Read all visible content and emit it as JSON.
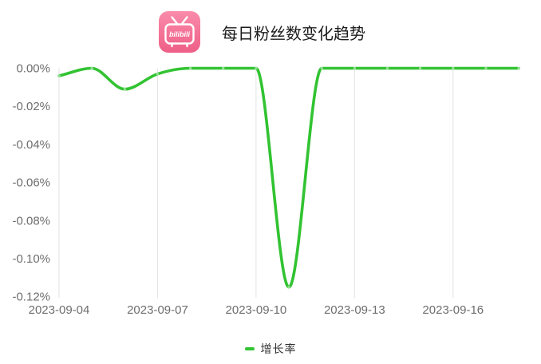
{
  "header": {
    "logo": {
      "name": "bilibili",
      "text": "bilibili",
      "brand_color": "#fb7299"
    },
    "title": "每日粉丝数变化趋势"
  },
  "chart_data": {
    "type": "line",
    "title": "每日粉丝数变化趋势",
    "smooth": true,
    "x": [
      "2023-09-04",
      "2023-09-05",
      "2023-09-06",
      "2023-09-07",
      "2023-09-08",
      "2023-09-09",
      "2023-09-10",
      "2023-09-11",
      "2023-09-12",
      "2023-09-13",
      "2023-09-14",
      "2023-09-15",
      "2023-09-16",
      "2023-09-17",
      "2023-09-18"
    ],
    "series": [
      {
        "name": "增长率",
        "color": "#32c332",
        "unit": "%",
        "values": [
          -0.004,
          0,
          -0.011,
          -0.003,
          0,
          0,
          0,
          -0.115,
          0,
          0,
          0,
          0,
          0,
          0,
          0
        ]
      }
    ],
    "ylim": [
      -0.12,
      0
    ],
    "y_ticks": [
      "0.00%",
      "-0.02%",
      "-0.04%",
      "-0.06%",
      "-0.08%",
      "-0.10%",
      "-0.12%"
    ],
    "x_tick_labels": [
      "2023-09-04",
      "2023-09-07",
      "2023-09-10",
      "2023-09-13",
      "2023-09-16"
    ],
    "grid": "vertical-only",
    "legend_position": "bottom",
    "colors": {
      "gridline": "#e2e2e2",
      "axis_label": "#6e6e6e",
      "background": "#ffffff"
    }
  },
  "legend": {
    "label": "增长率"
  }
}
